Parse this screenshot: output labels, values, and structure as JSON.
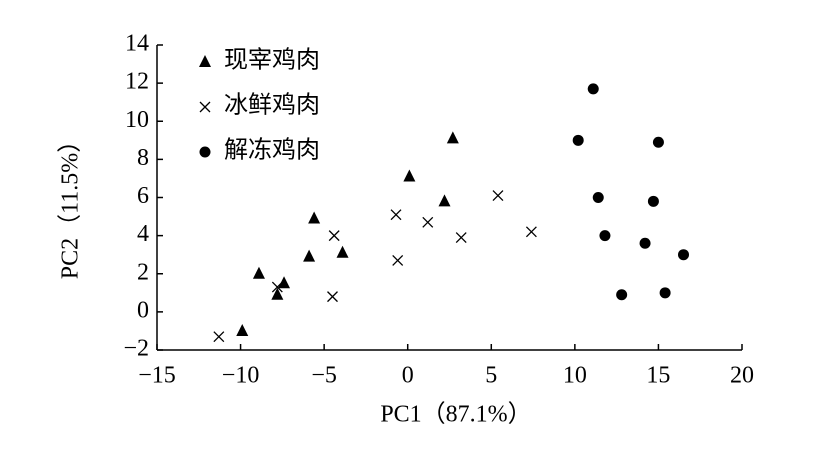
{
  "chart_data": {
    "type": "scatter",
    "xlabel": "PC1（87.1%）",
    "ylabel": "PC2（11.5%）",
    "xlim": [
      -15,
      20
    ],
    "ylim": [
      -2,
      14
    ],
    "xticks": [
      {
        "value": -15,
        "label": "−15"
      },
      {
        "value": -10,
        "label": "−10"
      },
      {
        "value": -5,
        "label": "−5"
      },
      0,
      5,
      10,
      15,
      20
    ],
    "yticks": [
      {
        "value": -2,
        "label": "−2"
      },
      0,
      2,
      4,
      6,
      8,
      10,
      12,
      14
    ],
    "legend": "upper left",
    "series": [
      {
        "name": "现宰鸡肉",
        "color": "#000000",
        "marker": "triangle",
        "x": [
          -9.9,
          -8.9,
          -7.8,
          -7.4,
          -5.9,
          -5.6,
          -3.9,
          0.1,
          2.2,
          2.7
        ],
        "y": [
          -1.0,
          2.0,
          0.9,
          1.5,
          2.9,
          4.9,
          3.1,
          7.1,
          5.8,
          9.1
        ]
      },
      {
        "name": "冰鲜鸡肉",
        "color": "#000000",
        "marker": "x",
        "x": [
          -11.3,
          -7.8,
          -4.4,
          -4.5,
          -0.7,
          -0.6,
          1.2,
          3.2,
          5.4,
          7.4
        ],
        "y": [
          -1.3,
          1.3,
          4.0,
          0.8,
          5.1,
          2.7,
          4.7,
          3.9,
          6.1,
          4.2
        ]
      },
      {
        "name": "解冻鸡肉",
        "color": "#000000",
        "marker": "circle",
        "x": [
          10.2,
          11.1,
          11.4,
          11.8,
          12.8,
          14.2,
          14.7,
          15.0,
          15.4,
          16.5
        ],
        "y": [
          9.0,
          11.7,
          6.0,
          4.0,
          0.9,
          3.6,
          5.8,
          8.9,
          1.0,
          3.0
        ]
      }
    ]
  }
}
